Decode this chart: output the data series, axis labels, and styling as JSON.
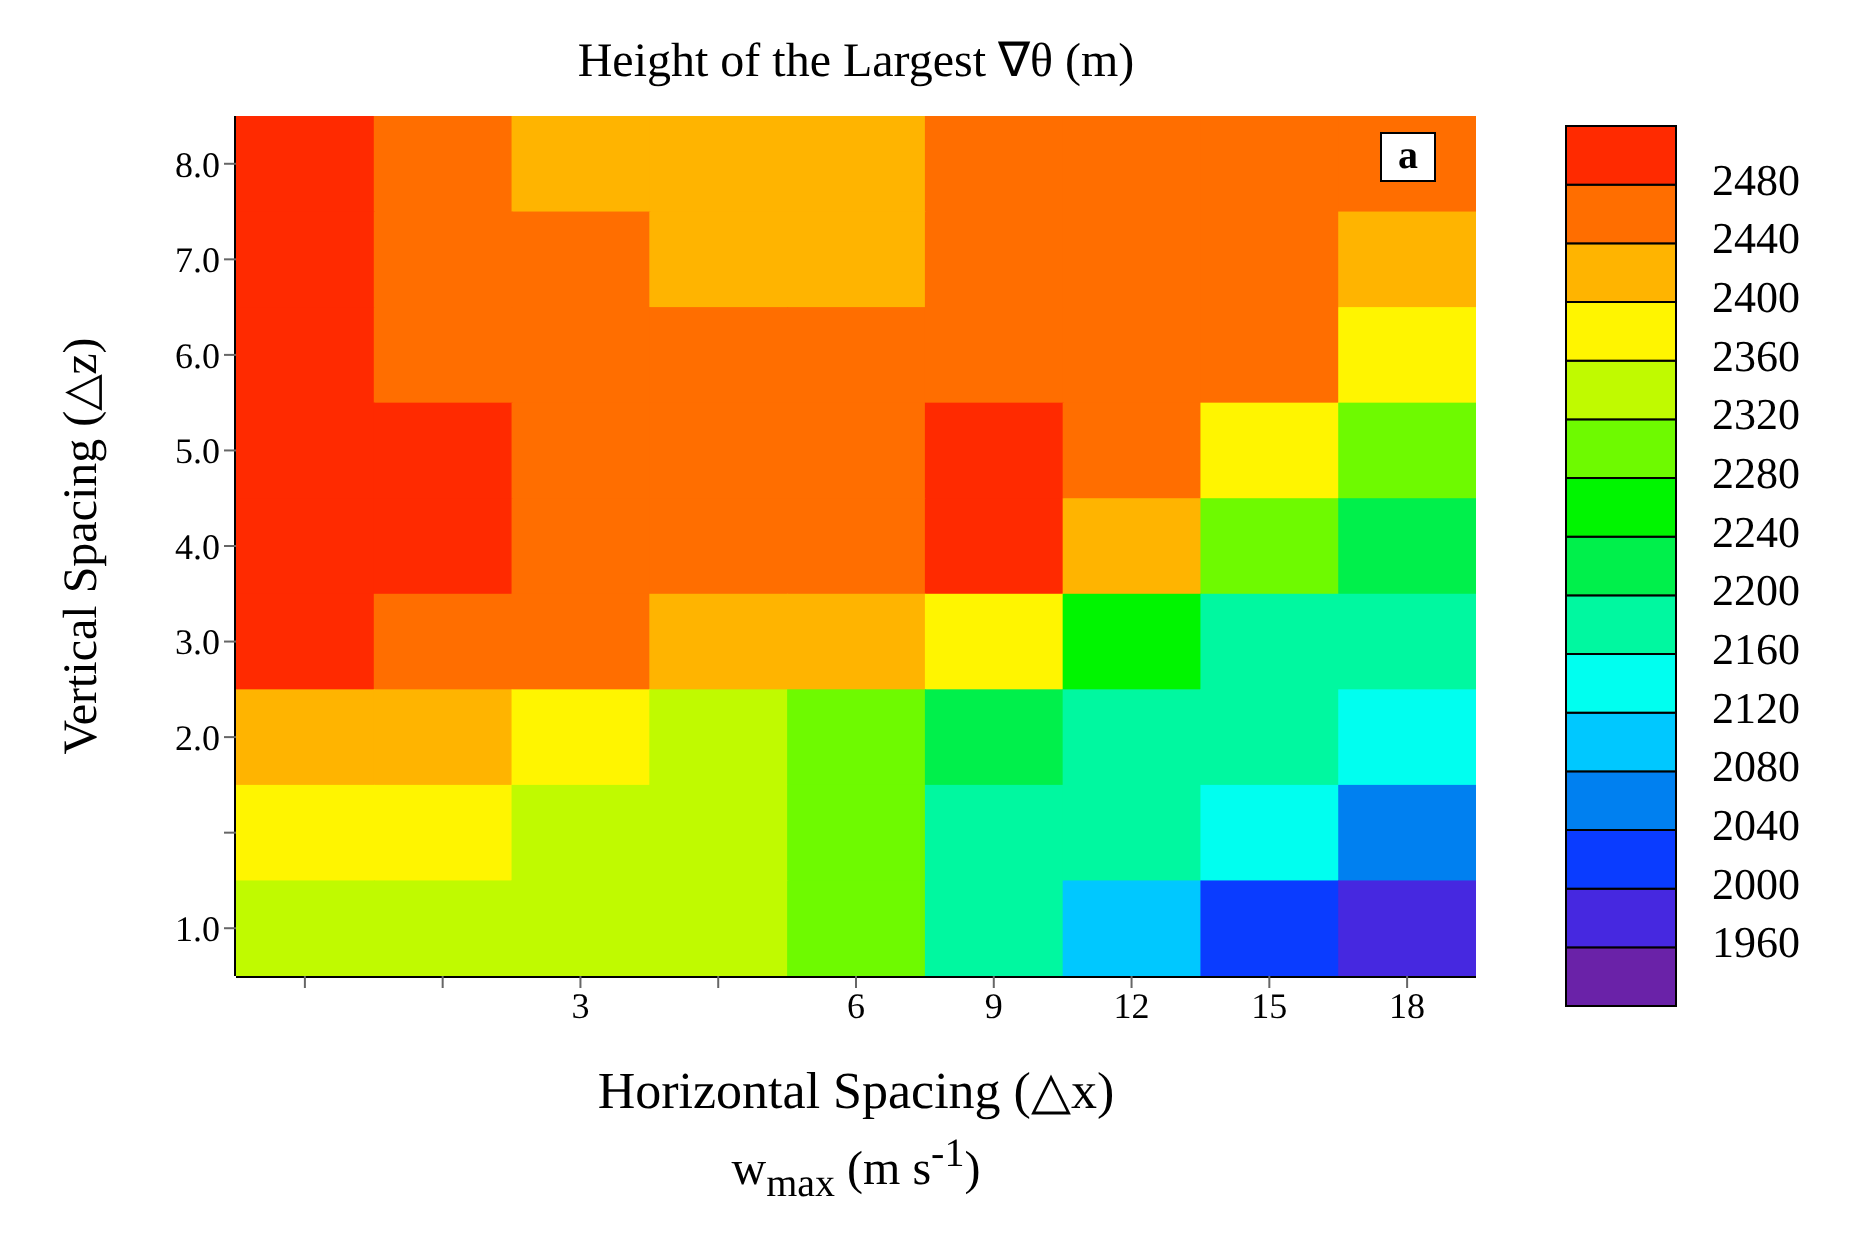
{
  "chart_data": {
    "type": "heatmap",
    "title": "Height of the Largest ∇θ  (m)",
    "xlabel": "Horizontal Spacing (△x)",
    "ylabel": "Vertical Spacing (△z)",
    "annotations": [
      "a",
      "w$_{max}$  (m s$^{-1}$)"
    ],
    "categories": [
      null,
      null,
      "3",
      null,
      "6",
      "9",
      "12",
      "15",
      "18"
    ],
    "y_categories": [
      "8.0",
      "7.0",
      "6.0",
      "5.0",
      "4.0",
      "3.0",
      "2.0",
      null,
      "1.0"
    ],
    "cells": [
      [
        2500,
        2460,
        2420,
        2420,
        2420,
        2460,
        2460,
        2460,
        2460
      ],
      [
        2500,
        2460,
        2460,
        2420,
        2420,
        2460,
        2460,
        2460,
        2420
      ],
      [
        2500,
        2460,
        2460,
        2460,
        2460,
        2460,
        2460,
        2460,
        2380
      ],
      [
        2500,
        2500,
        2460,
        2460,
        2460,
        2500,
        2460,
        2380,
        2300
      ],
      [
        2500,
        2500,
        2460,
        2460,
        2460,
        2500,
        2420,
        2300,
        2220
      ],
      [
        2500,
        2460,
        2460,
        2420,
        2420,
        2380,
        2260,
        2180,
        2180
      ],
      [
        2420,
        2420,
        2380,
        2340,
        2300,
        2220,
        2180,
        2180,
        2140
      ],
      [
        2380,
        2380,
        2340,
        2340,
        2300,
        2180,
        2180,
        2140,
        2060
      ],
      [
        2340,
        2340,
        2340,
        2340,
        2300,
        2180,
        2100,
        2020,
        1980
      ]
    ],
    "clim": [
      1920,
      2520
    ],
    "cticks": [
      1960,
      2000,
      2040,
      2080,
      2120,
      2160,
      2200,
      2240,
      2280,
      2320,
      2360,
      2400,
      2440,
      2480
    ],
    "colors": [
      "#6a22a8",
      "#4628e0",
      "#0a3cff",
      "#0080f0",
      "#00c8ff",
      "#00fff0",
      "#00f8a0",
      "#00f04b",
      "#00f500",
      "#6efa00",
      "#c0fa00",
      "#fff500",
      "#ffb400",
      "#ff6e00",
      "#ff2a00"
    ]
  }
}
